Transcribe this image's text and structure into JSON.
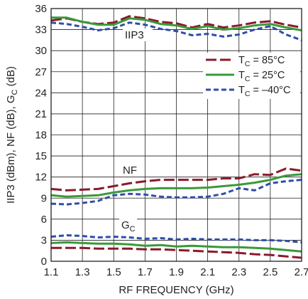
{
  "chart_data": {
    "type": "line",
    "xlabel": "RF FREQUENCY (GHz)",
    "ylabel": "IIP3 (dBm), NF (dB), G_C (dB)",
    "xlim": [
      1.1,
      2.7
    ],
    "ylim": [
      0,
      36
    ],
    "xticks": [
      "1.1",
      "1.3",
      "1.5",
      "1.7",
      "1.9",
      "2.1",
      "2.3",
      "2.5",
      "2.7"
    ],
    "yticks": [
      "0",
      "3",
      "6",
      "9",
      "12",
      "15",
      "18",
      "21",
      "24",
      "27",
      "30",
      "33",
      "36"
    ],
    "grid": true,
    "legend_position": "top-right",
    "annotations": [
      {
        "text": "IIP3",
        "group": "iip3"
      },
      {
        "text": "NF",
        "group": "nf"
      },
      {
        "text": "G",
        "subscript": "C",
        "group": "gc"
      }
    ],
    "legend": [
      {
        "prefix": "T",
        "sub": "C",
        "suffix": " = 85°C",
        "color": "#8b1a2b",
        "dash": "long-dash"
      },
      {
        "prefix": "T",
        "sub": "C",
        "suffix": " = 25°C",
        "color": "#3a9a3a",
        "dash": "solid"
      },
      {
        "prefix": "T",
        "sub": "C",
        "suffix": " = –40°C",
        "color": "#2e4ea8",
        "dash": "short-dash"
      }
    ],
    "series": [
      {
        "group": "iip3",
        "temp": "85",
        "color": "#8b1a2b",
        "dash": "long-dash",
        "x": [
          1.1,
          1.2,
          1.3,
          1.4,
          1.5,
          1.6,
          1.7,
          1.8,
          1.9,
          2.0,
          2.1,
          2.2,
          2.3,
          2.4,
          2.5,
          2.6,
          2.7
        ],
        "y": [
          34.3,
          34.6,
          34.1,
          33.8,
          34.0,
          34.9,
          34.6,
          34.1,
          33.9,
          33.3,
          33.8,
          33.3,
          33.6,
          34.0,
          34.2,
          33.7,
          33.3
        ]
      },
      {
        "group": "iip3",
        "temp": "25",
        "color": "#3a9a3a",
        "dash": "solid",
        "x": [
          1.1,
          1.2,
          1.3,
          1.4,
          1.5,
          1.6,
          1.7,
          1.8,
          1.9,
          2.0,
          2.1,
          2.2,
          2.3,
          2.4,
          2.5,
          2.6,
          2.7
        ],
        "y": [
          34.7,
          34.7,
          34.1,
          33.7,
          33.7,
          34.6,
          34.4,
          33.8,
          33.6,
          33.1,
          33.5,
          33.0,
          33.2,
          33.6,
          33.8,
          33.3,
          32.9
        ]
      },
      {
        "group": "iip3",
        "temp": "-40",
        "color": "#2e4ea8",
        "dash": "short-dash",
        "x": [
          1.1,
          1.2,
          1.3,
          1.4,
          1.5,
          1.6,
          1.7,
          1.8,
          1.9,
          2.0,
          2.1,
          2.2,
          2.3,
          2.4,
          2.5,
          2.6,
          2.7
        ],
        "y": [
          34.0,
          33.8,
          33.4,
          32.9,
          33.2,
          34.0,
          33.7,
          33.1,
          32.8,
          32.2,
          32.4,
          32.0,
          32.3,
          33.0,
          33.5,
          32.3,
          31.5
        ]
      },
      {
        "group": "nf",
        "temp": "85",
        "color": "#8b1a2b",
        "dash": "long-dash",
        "x": [
          1.1,
          1.2,
          1.3,
          1.4,
          1.5,
          1.6,
          1.7,
          1.8,
          1.9,
          2.0,
          2.1,
          2.2,
          2.3,
          2.4,
          2.5,
          2.6,
          2.7
        ],
        "y": [
          10.3,
          10.1,
          10.2,
          10.3,
          10.7,
          11.1,
          11.4,
          11.6,
          11.6,
          11.6,
          11.6,
          11.8,
          11.8,
          12.4,
          12.3,
          13.2,
          12.9
        ]
      },
      {
        "group": "nf",
        "temp": "25",
        "color": "#3a9a3a",
        "dash": "solid",
        "x": [
          1.1,
          1.2,
          1.3,
          1.4,
          1.5,
          1.6,
          1.7,
          1.8,
          1.9,
          2.0,
          2.1,
          2.2,
          2.3,
          2.4,
          2.5,
          2.6,
          2.7
        ],
        "y": [
          9.4,
          9.2,
          9.3,
          9.4,
          9.8,
          10.1,
          10.3,
          10.4,
          10.4,
          10.4,
          10.5,
          10.7,
          10.9,
          11.2,
          11.6,
          12.2,
          12.4
        ]
      },
      {
        "group": "nf",
        "temp": "-40",
        "color": "#2e4ea8",
        "dash": "short-dash",
        "x": [
          1.1,
          1.2,
          1.3,
          1.4,
          1.5,
          1.6,
          1.7,
          1.8,
          1.9,
          2.0,
          2.1,
          2.2,
          2.3,
          2.4,
          2.5,
          2.6,
          2.7
        ],
        "y": [
          8.2,
          8.1,
          8.3,
          8.6,
          9.4,
          9.6,
          9.5,
          9.2,
          9.1,
          9.1,
          9.2,
          9.6,
          10.4,
          10.1,
          11.1,
          11.4,
          11.6
        ]
      },
      {
        "group": "gc",
        "temp": "85",
        "color": "#8b1a2b",
        "dash": "long-dash",
        "x": [
          1.1,
          1.2,
          1.3,
          1.4,
          1.5,
          1.6,
          1.7,
          1.8,
          1.9,
          2.0,
          2.1,
          2.2,
          2.3,
          2.4,
          2.5,
          2.6,
          2.7
        ],
        "y": [
          1.9,
          1.9,
          1.9,
          1.8,
          1.8,
          1.8,
          1.7,
          1.7,
          1.6,
          1.5,
          1.4,
          1.3,
          1.2,
          1.0,
          0.9,
          0.7,
          0.5
        ]
      },
      {
        "group": "gc",
        "temp": "25",
        "color": "#3a9a3a",
        "dash": "solid",
        "x": [
          1.1,
          1.2,
          1.3,
          1.4,
          1.5,
          1.6,
          1.7,
          1.8,
          1.9,
          2.0,
          2.1,
          2.2,
          2.3,
          2.4,
          2.5,
          2.6,
          2.7
        ],
        "y": [
          2.6,
          2.7,
          2.6,
          2.5,
          2.5,
          2.4,
          2.2,
          2.3,
          2.1,
          2.2,
          2.1,
          2.0,
          2.0,
          1.9,
          1.8,
          1.6,
          1.4
        ]
      },
      {
        "group": "gc",
        "temp": "-40",
        "color": "#2e4ea8",
        "dash": "short-dash",
        "x": [
          1.1,
          1.2,
          1.3,
          1.4,
          1.5,
          1.6,
          1.7,
          1.8,
          1.9,
          2.0,
          2.1,
          2.2,
          2.3,
          2.4,
          2.5,
          2.6,
          2.7
        ],
        "y": [
          3.5,
          3.7,
          3.6,
          3.4,
          3.5,
          3.4,
          3.2,
          3.3,
          3.1,
          3.2,
          3.1,
          3.1,
          3.1,
          3.0,
          3.0,
          2.9,
          2.7
        ]
      }
    ]
  }
}
